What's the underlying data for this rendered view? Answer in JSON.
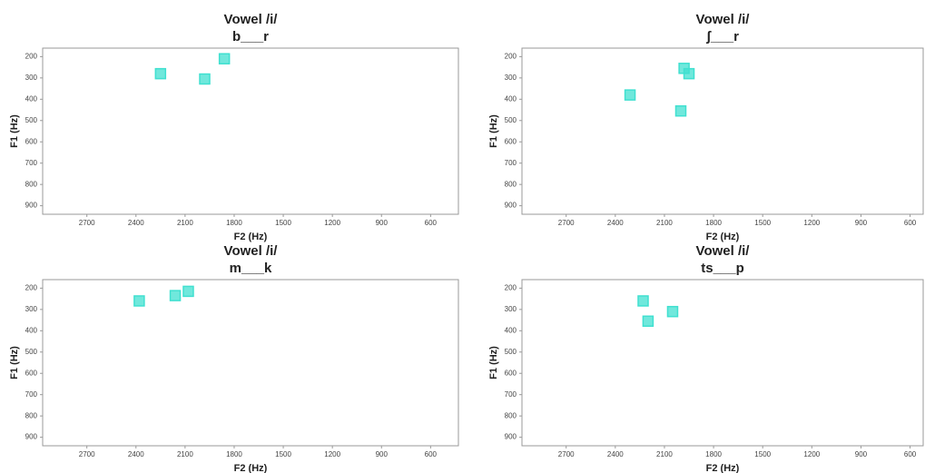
{
  "chart_data": [
    {
      "type": "scatter",
      "title": "Vowel /i/",
      "subtitle": "b___r",
      "x_label": "F2 (Hz)",
      "y_label": "F1 (Hz)",
      "x": [
        2250,
        1980,
        1860
      ],
      "values": [
        280,
        305,
        210
      ],
      "color": "#40e0d0",
      "xlim": [
        2970,
        430
      ],
      "ylim": [
        940,
        160
      ],
      "xticks": [
        2700,
        2400,
        2100,
        1800,
        1500,
        1200,
        900,
        600
      ],
      "yticks": [
        200,
        300,
        400,
        500,
        600,
        700,
        800,
        900
      ]
    },
    {
      "type": "scatter",
      "title": "Vowel /i/",
      "subtitle": "ʃ___r",
      "x_label": "F2 (Hz)",
      "y_label": "F1 (Hz)",
      "x": [
        2310,
        1980,
        1950,
        2000
      ],
      "values": [
        380,
        255,
        280,
        455
      ],
      "color": "#40e0d0",
      "xlim": [
        2970,
        520
      ],
      "ylim": [
        940,
        160
      ],
      "xticks": [
        2700,
        2400,
        2100,
        1800,
        1500,
        1200,
        900,
        600
      ],
      "yticks": [
        200,
        300,
        400,
        500,
        600,
        700,
        800,
        900
      ]
    },
    {
      "type": "scatter",
      "title": "Vowel /i/",
      "subtitle": "m___k",
      "x_label": "F2 (Hz)",
      "y_label": "F1 (Hz)",
      "x": [
        2380,
        2160,
        2080
      ],
      "values": [
        260,
        235,
        215
      ],
      "color": "#40e0d0",
      "xlim": [
        2970,
        430
      ],
      "ylim": [
        940,
        160
      ],
      "xticks": [
        2700,
        2400,
        2100,
        1800,
        1500,
        1200,
        900,
        600
      ],
      "yticks": [
        200,
        300,
        400,
        500,
        600,
        700,
        800,
        900
      ]
    },
    {
      "type": "scatter",
      "title": "Vowel /i/",
      "subtitle": "ts___p",
      "x_label": "F2 (Hz)",
      "y_label": "F1 (Hz)",
      "x": [
        2230,
        2200,
        2050
      ],
      "values": [
        260,
        355,
        310
      ],
      "color": "#40e0d0",
      "xlim": [
        2970,
        520
      ],
      "ylim": [
        940,
        160
      ],
      "xticks": [
        2700,
        2400,
        2100,
        1800,
        1500,
        1200,
        900,
        600
      ],
      "yticks": [
        200,
        300,
        400,
        500,
        600,
        700,
        800,
        900
      ]
    }
  ]
}
